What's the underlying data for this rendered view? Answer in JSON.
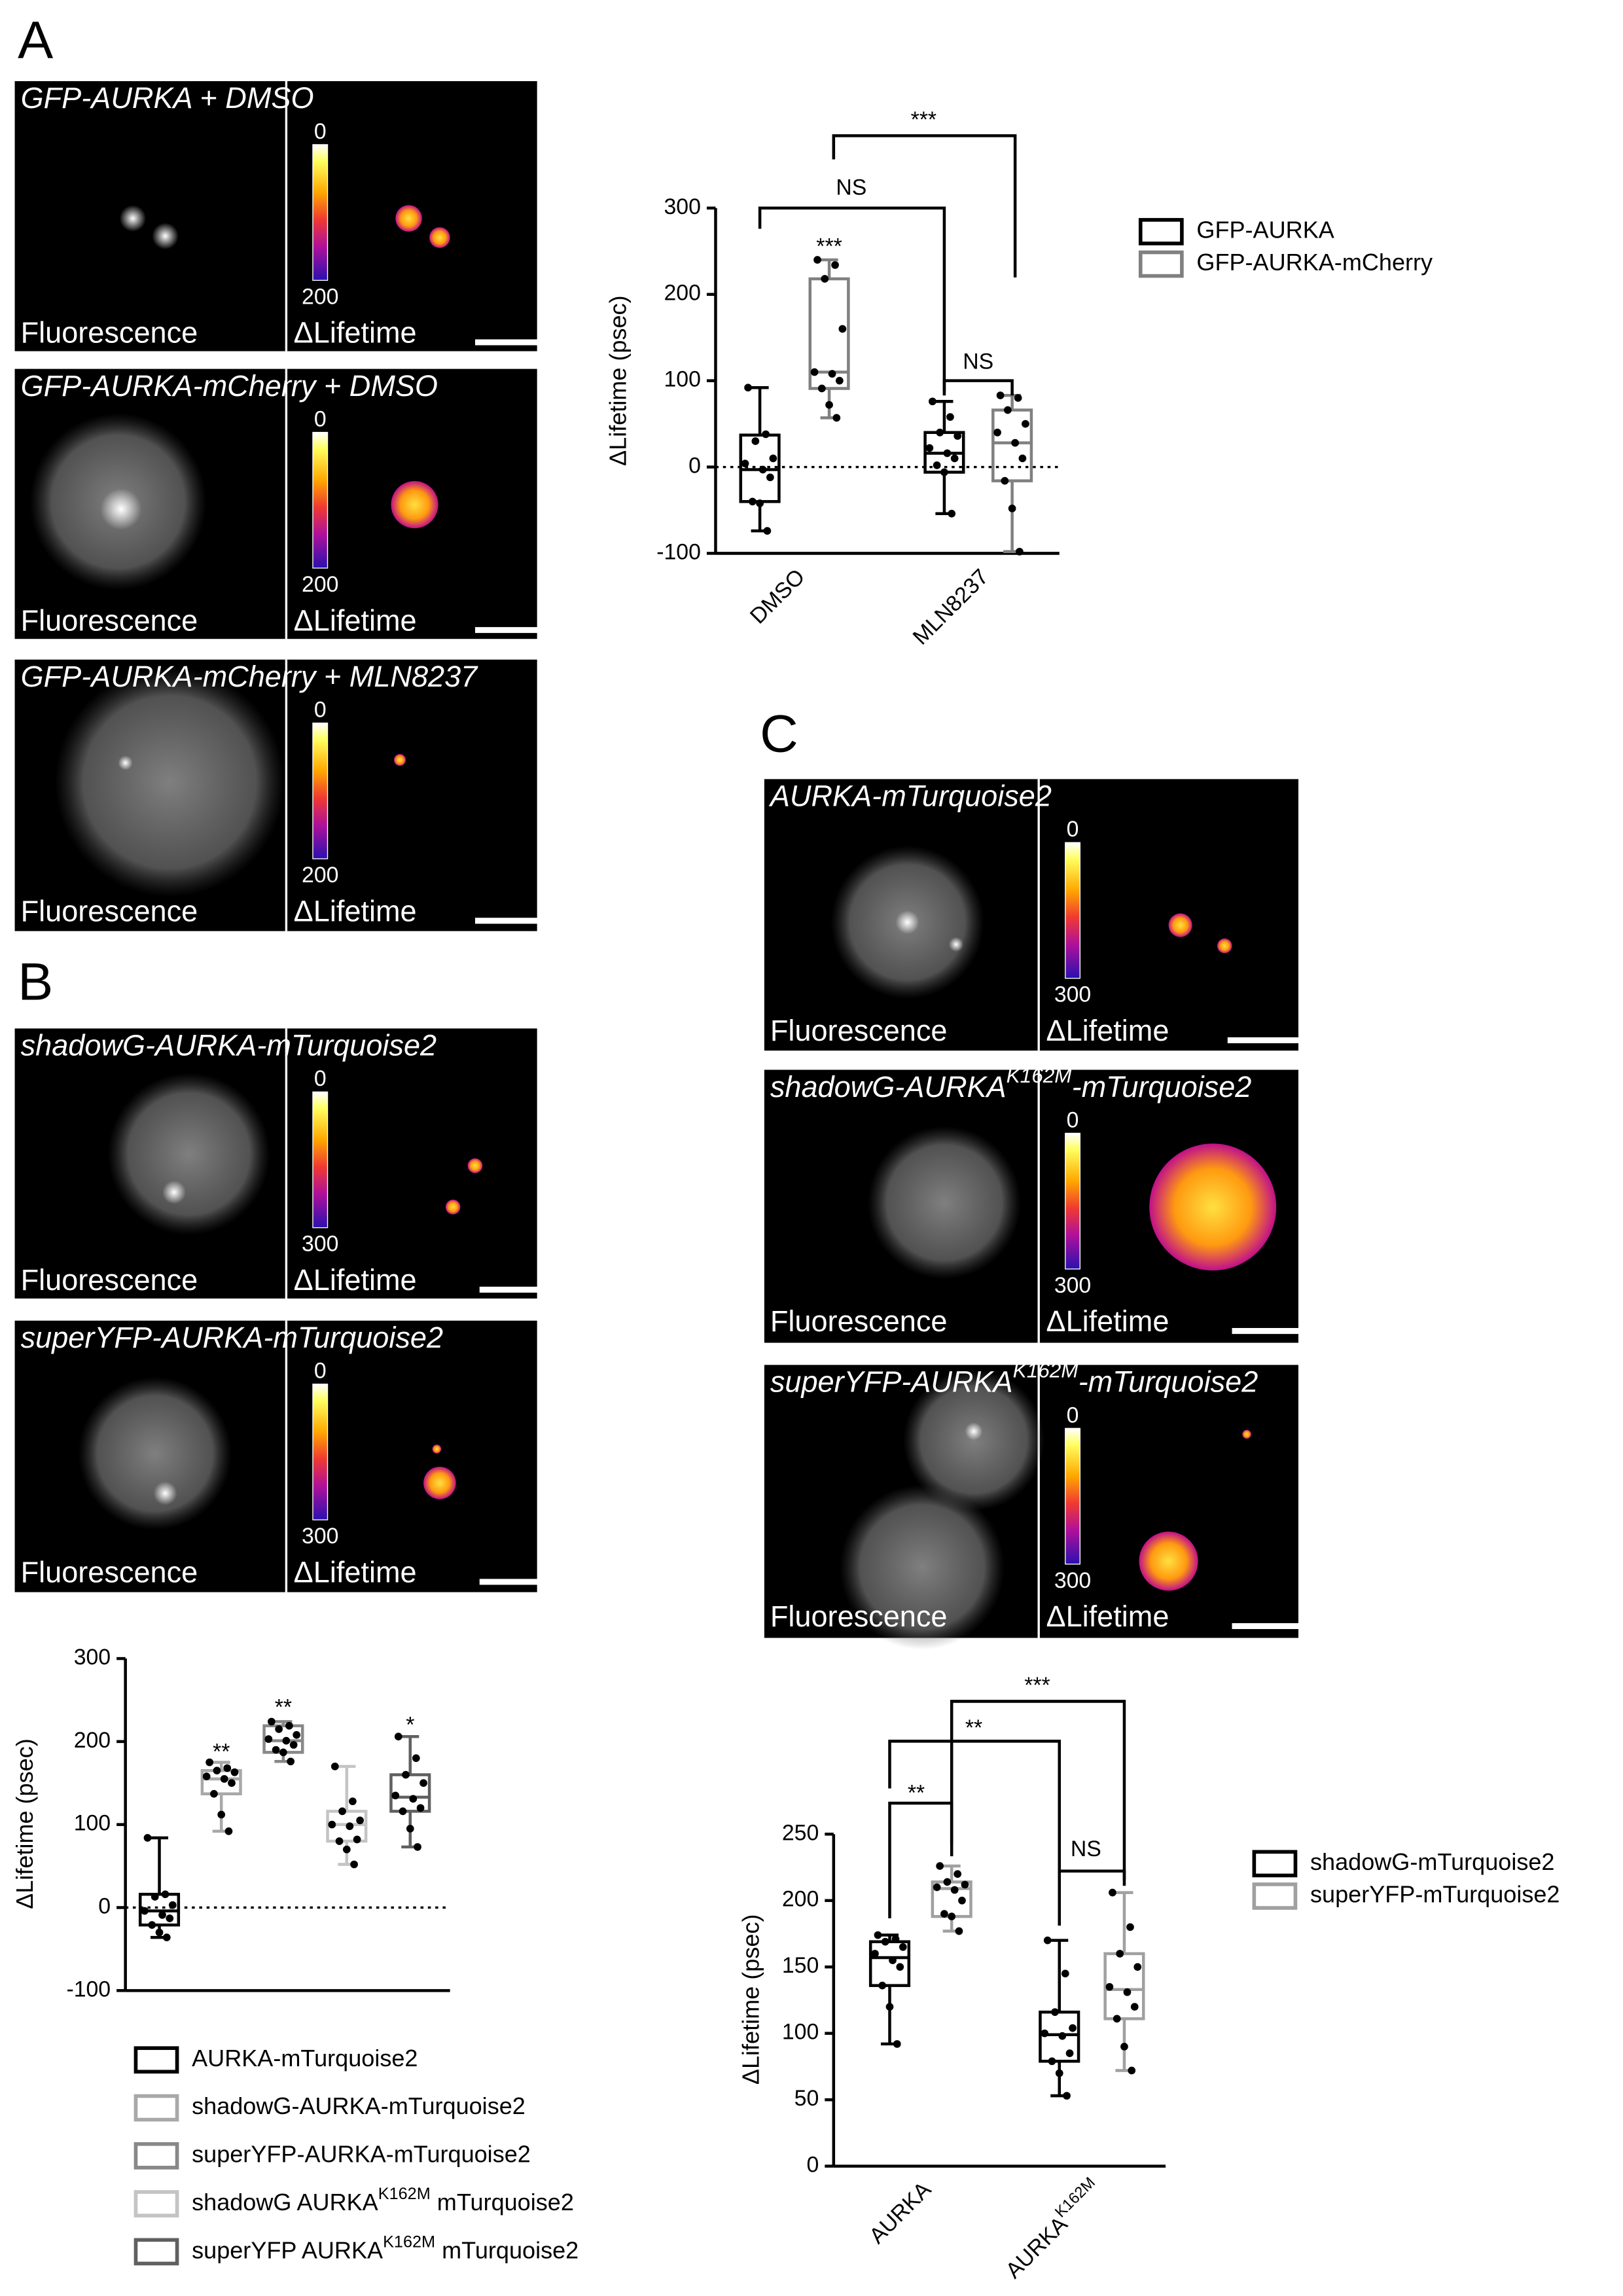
{
  "panel_labels": [
    "A",
    "B",
    "C"
  ],
  "image_panels": [
    {
      "title": "GFP-AURKA + DMSO",
      "colorbar": [
        0,
        200
      ],
      "channels": [
        "Fluorescence",
        "ΔLifetime"
      ]
    },
    {
      "title": "GFP-AURKA-mCherry + DMSO",
      "colorbar": [
        0,
        200
      ],
      "channels": [
        "Fluorescence",
        "ΔLifetime"
      ]
    },
    {
      "title": "GFP-AURKA-mCherry + MLN8237",
      "colorbar": [
        0,
        200
      ],
      "channels": [
        "Fluorescence",
        "ΔLifetime"
      ]
    },
    {
      "title": "shadowG-AURKA-mTurquoise2",
      "colorbar": [
        0,
        300
      ],
      "channels": [
        "Fluorescence",
        "ΔLifetime"
      ]
    },
    {
      "title": "superYFP-AURKA-mTurquoise2",
      "colorbar": [
        0,
        300
      ],
      "channels": [
        "Fluorescence",
        "ΔLifetime"
      ]
    },
    {
      "title": "AURKA-mTurquoise2",
      "colorbar": [
        0,
        300
      ],
      "channels": [
        "Fluorescence",
        "ΔLifetime"
      ]
    },
    {
      "title": [
        "shadowG-AURKA",
        "K162M",
        "-mTurquoise2"
      ],
      "colorbar": [
        0,
        300
      ],
      "channels": [
        "Fluorescence",
        "ΔLifetime"
      ]
    },
    {
      "title": [
        "superYFP-AURKA",
        "K162M",
        "-mTurquoise2"
      ],
      "colorbar": [
        0,
        300
      ],
      "channels": [
        "Fluorescence",
        "ΔLifetime"
      ]
    }
  ],
  "chart_data": [
    {
      "type": "box",
      "y_label": "ΔLifetime (psec)",
      "ylim": [
        -100,
        300
      ],
      "yticks": [
        -100,
        0,
        100,
        200,
        300
      ],
      "reference_line": 0,
      "categories": [
        "DMSO",
        "MLN8237"
      ],
      "series": [
        {
          "name": "GFP-AURKA",
          "color": "#000000",
          "values": [
            {
              "min": -74,
              "q1": -40,
              "median": -3,
              "q3": 37,
              "max": 92,
              "points": [
                92,
                38,
                30,
                10,
                4,
                -3,
                -12,
                -40,
                -42,
                -74
              ]
            },
            {
              "min": -54,
              "q1": -6,
              "median": 16,
              "q3": 40,
              "max": 76,
              "points": [
                76,
                58,
                40,
                36,
                22,
                16,
                10,
                2,
                -6,
                -54
              ]
            }
          ]
        },
        {
          "name": "GFP-AURKA-mCherry",
          "color": "#808080",
          "values": [
            {
              "min": 57,
              "q1": 91,
              "median": 110,
              "q3": 218,
              "max": 240,
              "points": [
                240,
                234,
                218,
                160,
                110,
                108,
                100,
                91,
                72,
                57
              ]
            },
            {
              "min": -98,
              "q1": -16,
              "median": 28,
              "q3": 66,
              "max": 83,
              "points": [
                83,
                80,
                66,
                50,
                40,
                28,
                10,
                -16,
                -48,
                -98
              ]
            }
          ]
        }
      ],
      "annotations": [
        "***",
        "NS",
        "***",
        "NS"
      ]
    },
    {
      "type": "box",
      "y_label": "ΔLifetime (psec)",
      "ylim": [
        -100,
        300
      ],
      "yticks": [
        -100,
        0,
        100,
        200,
        300
      ],
      "reference_line": 0,
      "series": [
        {
          "name": "AURKA-mTurquoise2",
          "color": "#000000",
          "values": [
            {
              "min": -36,
              "q1": -21,
              "median": -4,
              "q3": 16,
              "max": 84,
              "points": [
                84,
                16,
                13,
                3,
                -4,
                -9,
                -13,
                -21,
                -30,
                -36
              ]
            }
          ]
        },
        {
          "name": "shadowG-AURKA-mTurquoise2",
          "color": "#a8a8a8",
          "values": [
            {
              "min": 92,
              "q1": 137,
              "median": 155,
              "q3": 165,
              "max": 175,
              "points": [
                175,
                168,
                165,
                163,
                158,
                155,
                150,
                137,
                112,
                92
              ]
            }
          ]
        },
        {
          "name": "superYFP-AURKA-mTurquoise2",
          "color": "#888888",
          "values": [
            {
              "min": 176,
              "q1": 187,
              "median": 201,
              "q3": 219,
              "max": 224,
              "points": [
                224,
                219,
                215,
                208,
                203,
                201,
                196,
                190,
                187,
                176
              ]
            }
          ]
        },
        {
          "name": [
            "shadowG AURKA",
            "K162M",
            " mTurquoise2"
          ],
          "color": "#c4c4c4",
          "values": [
            {
              "min": 52,
              "q1": 80,
              "median": 100,
              "q3": 116,
              "max": 170,
              "points": [
                170,
                128,
                116,
                105,
                100,
                98,
                82,
                80,
                70,
                52
              ]
            }
          ]
        },
        {
          "name": [
            "superYFP AURKA",
            "K162M",
            " mTurquoise2"
          ],
          "color": "#606060",
          "values": [
            {
              "min": 73,
              "q1": 116,
              "median": 133,
              "q3": 160,
              "max": 206,
              "points": [
                206,
                180,
                160,
                150,
                135,
                131,
                120,
                116,
                95,
                73
              ]
            }
          ]
        }
      ],
      "annotations": [
        "**",
        "**",
        "*"
      ]
    },
    {
      "type": "box",
      "y_label": "ΔLifetime (psec)",
      "ylim": [
        0,
        250
      ],
      "yticks": [
        0,
        50,
        100,
        150,
        200,
        250
      ],
      "categories": [
        "AURKA",
        [
          "AURKA",
          "K162M"
        ]
      ],
      "series": [
        {
          "name": "shadowG-mTurquoise2",
          "color": "#000000",
          "values": [
            {
              "min": 92,
              "q1": 136,
              "median": 157,
              "q3": 169,
              "max": 174,
              "points": [
                174,
                171,
                169,
                165,
                160,
                155,
                150,
                136,
                120,
                92
              ]
            },
            {
              "min": 53,
              "q1": 79,
              "median": 99,
              "q3": 116,
              "max": 170,
              "points": [
                170,
                145,
                116,
                104,
                100,
                98,
                85,
                79,
                70,
                53
              ]
            }
          ]
        },
        {
          "name": "superYFP-mTurquoise2",
          "color": "#a0a0a0",
          "values": [
            {
              "min": 177,
              "q1": 188,
              "median": 209,
              "q3": 214,
              "max": 226,
              "points": [
                226,
                220,
                214,
                212,
                210,
                208,
                200,
                190,
                188,
                177
              ]
            },
            {
              "min": 72,
              "q1": 111,
              "median": 133,
              "q3": 160,
              "max": 206,
              "points": [
                206,
                180,
                160,
                150,
                135,
                131,
                120,
                111,
                90,
                72
              ]
            }
          ]
        }
      ],
      "annotations": [
        "**",
        "NS",
        "**",
        "***"
      ]
    }
  ]
}
